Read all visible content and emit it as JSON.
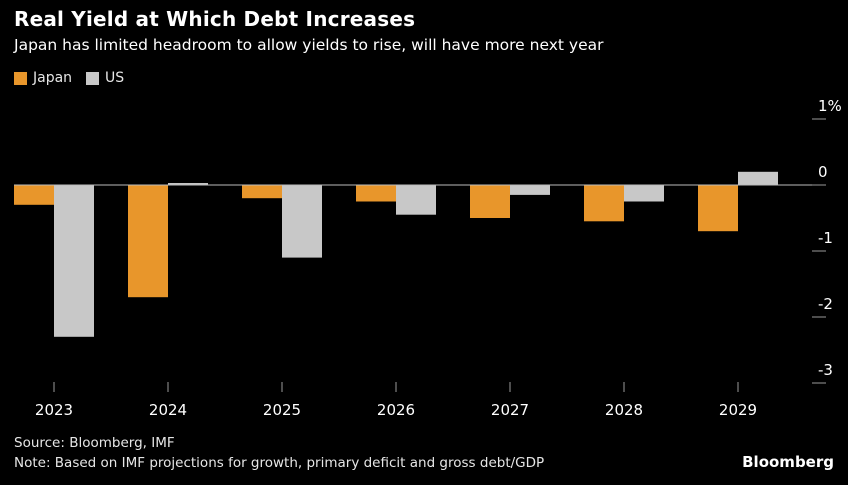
{
  "chart_data": {
    "type": "bar",
    "title": "Real Yield at Which Debt Increases",
    "subtitle": "Japan has limited headroom to allow yields to rise, will have more next year",
    "categories": [
      "2023",
      "2024",
      "2025",
      "2026",
      "2027",
      "2028",
      "2029"
    ],
    "series": [
      {
        "name": "Japan",
        "color": "#e8962b",
        "values": [
          -0.3,
          -1.7,
          -0.2,
          -0.25,
          -0.5,
          -0.55,
          -0.7
        ]
      },
      {
        "name": "US",
        "color": "#c8c8c8",
        "values": [
          -2.3,
          0.03,
          -1.1,
          -0.45,
          -0.15,
          -0.25,
          0.2
        ]
      }
    ],
    "ylim": [
      -3,
      1
    ],
    "yticks": [
      "1%",
      "0",
      "-1",
      "-2",
      "-3"
    ],
    "ytick_values": [
      1,
      0,
      -1,
      -2,
      -3
    ],
    "xlabel": "",
    "ylabel": "",
    "legend": "top-left",
    "grid": false
  },
  "footer": {
    "source": "Source: Bloomberg, IMF",
    "note": "Note: Based on IMF projections for growth, primary deficit and gross debt/GDP",
    "brand": "Bloomberg"
  }
}
